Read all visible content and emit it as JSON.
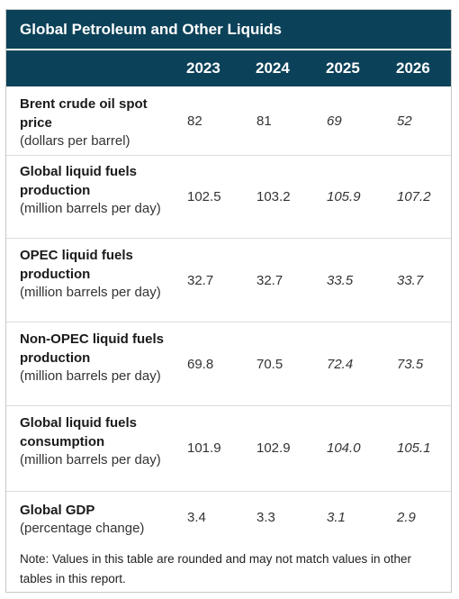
{
  "title": "Global Petroleum and Other Liquids",
  "years": [
    "2023",
    "2024",
    "2025",
    "2026"
  ],
  "rows": [
    {
      "name": "Brent crude oil spot price",
      "unit": "(dollars per barrel)",
      "values": [
        "82",
        "81",
        "69",
        "52"
      ]
    },
    {
      "name": "Global liquid fuels production",
      "unit": "(million barrels per day)",
      "values": [
        "102.5",
        "103.2",
        "105.9",
        "107.2"
      ]
    },
    {
      "name": "OPEC liquid fuels production",
      "unit": "(million barrels per day)",
      "values": [
        "32.7",
        "32.7",
        "33.5",
        "33.7"
      ]
    },
    {
      "name": "Non-OPEC liquid fuels production",
      "unit": "(million barrels per day)",
      "values": [
        "69.8",
        "70.5",
        "72.4",
        "73.5"
      ]
    },
    {
      "name": "Global liquid fuels consumption",
      "unit": "(million barrels per day)",
      "values": [
        "101.9",
        "102.9",
        "104.0",
        "105.1"
      ]
    },
    {
      "name": "Global GDP",
      "unit": "(percentage change)",
      "values": [
        "3.4",
        "3.3",
        "3.1",
        "2.9"
      ]
    }
  ],
  "note": "Note: Values in this table are rounded and may not match values in other tables in this report.",
  "colors": {
    "header_bg": "#0c4259",
    "header_text": "#ffffff"
  }
}
